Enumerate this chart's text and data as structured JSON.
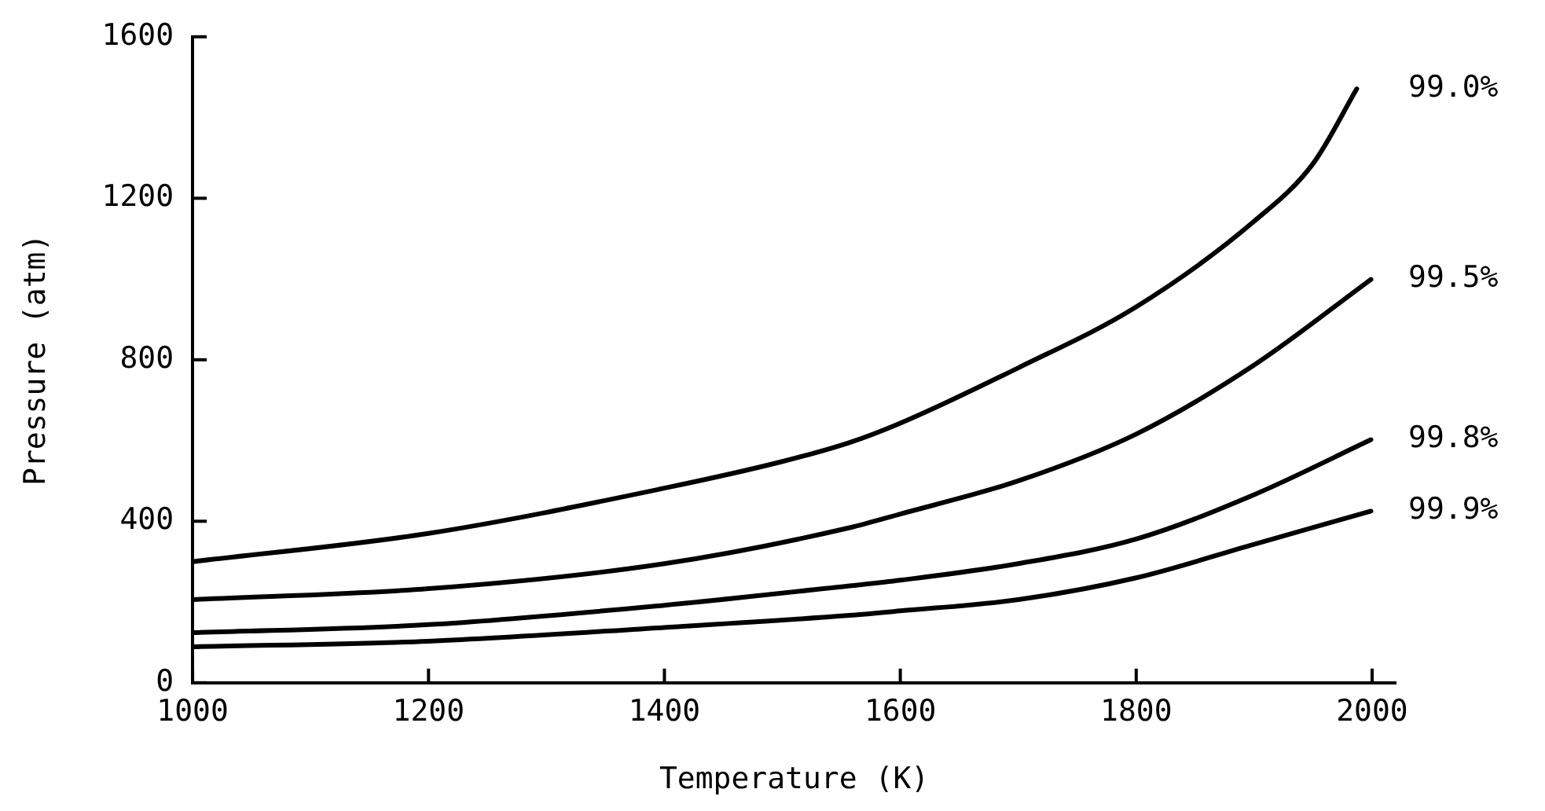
{
  "chart_data": {
    "type": "line",
    "xlabel": "Temperature (K)",
    "ylabel": "Pressure (atm)",
    "xlim": [
      1000,
      2020
    ],
    "xticks": [
      1000,
      1200,
      1400,
      1600,
      1800,
      2000
    ],
    "ylim": [
      0,
      1600
    ],
    "yticks": [
      0,
      400,
      800,
      1200,
      1600
    ],
    "grid": false,
    "legend": false,
    "marker": "none",
    "line_style": "solid",
    "series": [
      {
        "name": "99.0%",
        "color": "#000000",
        "x": [
          1000,
          1200,
          1400,
          1500,
          1557,
          1600,
          1700,
          1800,
          1900,
          1950,
          1987
        ],
        "values": [
          300,
          370,
          482,
          548,
          595,
          643,
          780,
          931,
          1143,
          1286,
          1471
        ]
      },
      {
        "name": "99.5%",
        "color": "#000000",
        "x": [
          1000,
          1200,
          1400,
          1557,
          1600,
          1700,
          1800,
          1900,
          1999
        ],
        "values": [
          206,
          233,
          295,
          384,
          418,
          500,
          616,
          787,
          999
        ]
      },
      {
        "name": "99.8%",
        "color": "#000000",
        "x": [
          1000,
          1200,
          1400,
          1557,
          1600,
          1700,
          1800,
          1900,
          1999
        ],
        "values": [
          124,
          144,
          192,
          240,
          254,
          295,
          356,
          466,
          602
        ]
      },
      {
        "name": "99.9%",
        "color": "#000000",
        "x": [
          1000,
          1200,
          1400,
          1557,
          1600,
          1700,
          1800,
          1900,
          1999
        ],
        "values": [
          89,
          103,
          137,
          167,
          178,
          206,
          260,
          343,
          425
        ]
      }
    ]
  }
}
